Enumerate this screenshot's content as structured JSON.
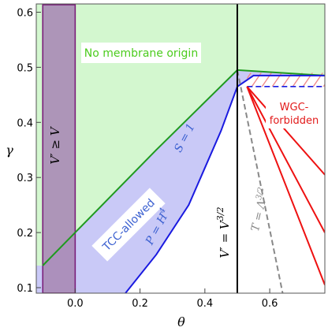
{
  "chart_data": {
    "type": "line",
    "xlabel": "θ",
    "ylabel": "γ",
    "xlim": [
      -0.12,
      0.77
    ],
    "ylim": [
      0.09,
      0.615
    ],
    "x_ticks": [
      0.0,
      0.2,
      0.4,
      0.6
    ],
    "x_tick_labels": [
      "0.0",
      "0.2",
      "0.4",
      "0.6"
    ],
    "y_ticks": [
      0.1,
      0.2,
      0.3,
      0.4,
      0.5,
      0.6
    ],
    "y_tick_labels": [
      "0.1",
      "0.2",
      "0.3",
      "0.4",
      "0.5",
      "0.6"
    ],
    "grid": false,
    "colors": {
      "no_membrane_fill": "#d3f7cf",
      "tcc_fill": "#c9c9f7",
      "vprime_fill": "#a889b5",
      "vprime_border": "#7a1f7a",
      "s1_line": "#1f9a1f",
      "p_line": "#1a1ae0",
      "wgc_line": "#ee1111",
      "hatch": "#f08a8a",
      "v32_line": "#000000",
      "t_line": "#888888",
      "green_text": "#4ccc1e",
      "blue_text": "#3a5fd0",
      "red_text": "#e21a1a",
      "gray_text": "#888888"
    },
    "series": [
      {
        "name": "S = 1",
        "x": [
          -0.1,
          0.0,
          0.25,
          0.5,
          0.77
        ],
        "y": [
          0.14,
          0.2,
          0.35,
          0.495,
          0.485
        ]
      },
      {
        "name": "P = H⁴",
        "x": [
          0.155,
          0.25,
          0.35,
          0.45,
          0.5,
          0.55,
          0.77
        ],
        "y": [
          0.09,
          0.16,
          0.25,
          0.385,
          0.465,
          0.485,
          0.485
        ]
      },
      {
        "name": "T = Λ^{3/2}",
        "x": [
          0.5,
          0.64
        ],
        "y": [
          0.495,
          0.09
        ]
      }
    ],
    "wgc_lines": [
      {
        "x": [
          0.53,
          0.77
        ],
        "y": [
          0.465,
          0.305
        ]
      },
      {
        "x": [
          0.53,
          0.77
        ],
        "y": [
          0.465,
          0.2
        ]
      },
      {
        "x": [
          0.53,
          0.77
        ],
        "y": [
          0.465,
          0.105
        ]
      }
    ],
    "wgc_boundary": {
      "x": [
        0.53,
        0.77
      ],
      "y": [
        0.465,
        0.465
      ]
    },
    "vertical_line": {
      "name": "V′ = V^{3/2}",
      "x": 0.5
    },
    "vprime_region": {
      "xmin": -0.1,
      "xmax": 0.0
    },
    "regions": {
      "no_membrane": "No membrane origin",
      "tcc": "TCC-allowed",
      "wgc_line1": "WGC-",
      "wgc_line2": "forbidden",
      "vprime": "V′ ≥ V"
    },
    "labels": {
      "s1": "S = 1",
      "p": "P = H",
      "p_sup": "4",
      "t": "T = Λ",
      "t_sup": "3/2",
      "v": "V′ = V",
      "v_sup": "3/2"
    }
  }
}
